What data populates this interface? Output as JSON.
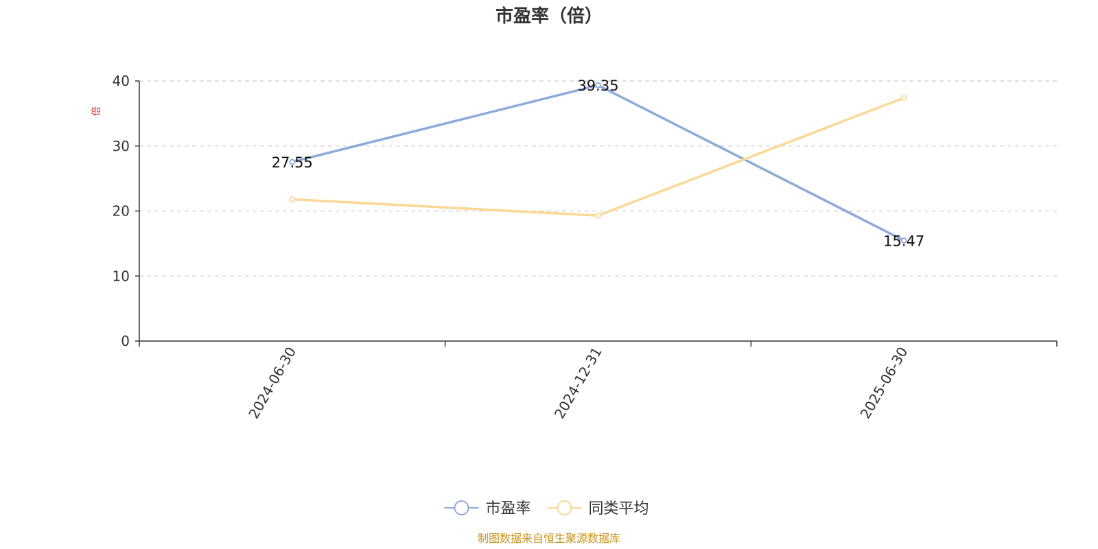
{
  "chart_data": {
    "type": "line",
    "title": "市盈率（倍）",
    "ylabel": "倍",
    "xlabel": "",
    "categories": [
      "2024-06-30",
      "2024-12-31",
      "2025-06-30"
    ],
    "ylim": [
      0,
      40
    ],
    "yticks": [
      0,
      10,
      20,
      30,
      40
    ],
    "grid": true,
    "legend_position": "bottom-center",
    "series": [
      {
        "name": "市盈率",
        "values": [
          27.55,
          39.35,
          15.47
        ],
        "color": "#8eaad8",
        "show_labels": true
      },
      {
        "name": "同类平均",
        "values": [
          21.8,
          19.3,
          37.4
        ],
        "color": "#fbd896",
        "show_labels": false
      }
    ],
    "source": "制图数据来自恒生聚源数据库"
  }
}
